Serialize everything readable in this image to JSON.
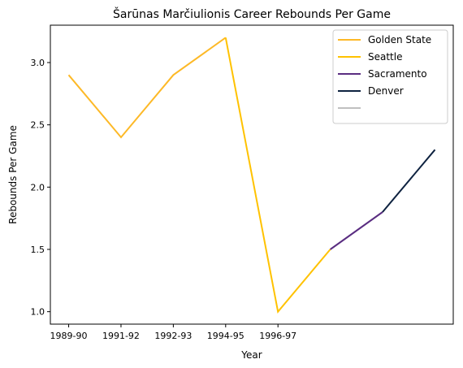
{
  "chart_data": {
    "type": "line",
    "title": "Šarūnas Marčiulionis Career Rebounds Per Game",
    "xlabel": "Year",
    "ylabel": "Rebounds Per Game",
    "x_tick_labels": [
      "1989-90",
      "1991-92",
      "1992-93",
      "1994-95",
      "1996-97"
    ],
    "x_tick_positions": [
      0,
      1,
      2,
      3,
      4
    ],
    "y_ticks": [
      1.0,
      1.5,
      2.0,
      2.5,
      3.0
    ],
    "y_tick_labels": [
      "1.0",
      "1.5",
      "2.0",
      "2.5",
      "3.0"
    ],
    "xlim": [
      -0.35,
      7.35
    ],
    "ylim": [
      0.9,
      3.3
    ],
    "legend_position": "top-right",
    "grid": false,
    "series": [
      {
        "name": "Golden State",
        "color": "#FDB927",
        "x": [
          0,
          1,
          2,
          3
        ],
        "y": [
          2.9,
          2.4,
          2.9,
          3.2
        ]
      },
      {
        "name": "Seattle",
        "color": "#FFC200",
        "x": [
          3,
          4,
          5
        ],
        "y": [
          3.2,
          1.0,
          1.5
        ]
      },
      {
        "name": "Sacramento",
        "color": "#5A2D81",
        "x": [
          5,
          6
        ],
        "y": [
          1.5,
          1.8
        ]
      },
      {
        "name": "Denver",
        "color": "#0E2240",
        "x": [
          6,
          7
        ],
        "y": [
          1.8,
          2.3
        ]
      },
      {
        "name": "",
        "color": "#C0C0C0",
        "x": [],
        "y": []
      }
    ]
  }
}
